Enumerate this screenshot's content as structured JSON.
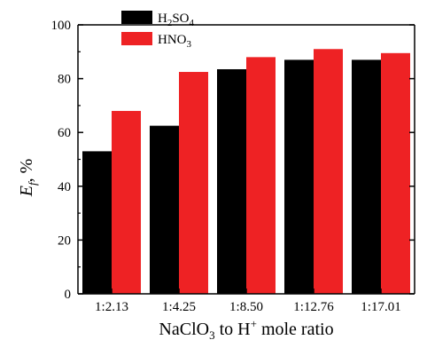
{
  "chart_data": {
    "type": "bar",
    "categories": [
      "1:2.13",
      "1:4.25",
      "1:8.50",
      "1:12.76",
      "1:17.01"
    ],
    "series": [
      {
        "name": "H2SO4",
        "name_parts": [
          "H",
          "2",
          "SO",
          "4"
        ],
        "color": "#000000",
        "values": [
          53,
          62.5,
          83.5,
          87,
          87
        ]
      },
      {
        "name": "HNO3",
        "name_parts": [
          "HNO",
          "3"
        ],
        "color": "#ee2224",
        "values": [
          68,
          82.5,
          88,
          91,
          89.5
        ]
      }
    ],
    "xlabel": "NaClO3 to H+ mole  ratio",
    "xlabel_parts": {
      "a": "NaClO",
      "sub": "3",
      "b": " to H",
      "sup": "+",
      "c": " mole  ratio"
    },
    "ylabel": "Ef, %",
    "ylabel_parts": {
      "main": "E",
      "sub": "f",
      "rest": ", %"
    },
    "ylim": [
      0,
      100
    ],
    "yticks": [
      0,
      20,
      40,
      60,
      80,
      100
    ],
    "grid": false,
    "legend_position": "top-left"
  }
}
